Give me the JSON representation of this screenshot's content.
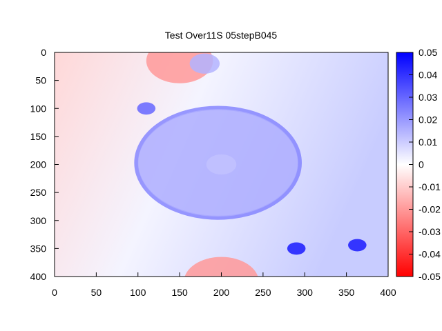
{
  "chart_data": {
    "type": "heatmap",
    "title": "Test Over11S 05stepB045",
    "xlabel": "",
    "ylabel": "",
    "xlim": [
      0,
      400
    ],
    "ylim": [
      400,
      0
    ],
    "x_ticks": [
      "0",
      "50",
      "100",
      "150",
      "200",
      "250",
      "300",
      "350",
      "400"
    ],
    "y_ticks": [
      "0",
      "50",
      "100",
      "150",
      "200",
      "250",
      "300",
      "350",
      "400"
    ],
    "colorbar": {
      "range": [
        -0.05,
        0.05
      ],
      "ticks": [
        "0.05",
        "0.04",
        "0.03",
        "0.02",
        "0.01",
        "0",
        "-0.01",
        "-0.02",
        "-0.03",
        "-0.04",
        "-0.05"
      ],
      "colors": {
        "min": "#ff0000",
        "mid": "#ffffff",
        "max": "#0000ff"
      }
    },
    "features": [
      {
        "shape": "ring",
        "cx": 196,
        "cy": 197,
        "r": 98,
        "value": 0.025
      },
      {
        "shape": "disk",
        "cx": 196,
        "cy": 197,
        "r": 96,
        "value": 0.016
      },
      {
        "shape": "disk",
        "cx": 200,
        "cy": 200,
        "r": 18,
        "value": 0.012
      },
      {
        "shape": "disk",
        "cx": 110,
        "cy": 100,
        "r": 11,
        "value": 0.03
      },
      {
        "shape": "disk",
        "cx": 290,
        "cy": 350,
        "r": 11,
        "value": 0.045
      },
      {
        "shape": "disk",
        "cx": 363,
        "cy": 344,
        "r": 11,
        "value": 0.045
      },
      {
        "shape": "disk",
        "cx": 150,
        "cy": 15,
        "r": 40,
        "value": -0.02
      },
      {
        "shape": "disk",
        "cx": 180,
        "cy": 20,
        "r": 18,
        "value": 0.015
      },
      {
        "shape": "disk",
        "cx": 200,
        "cy": 410,
        "r": 45,
        "value": -0.02
      }
    ]
  }
}
